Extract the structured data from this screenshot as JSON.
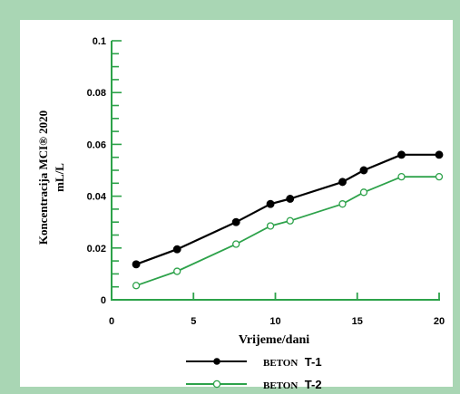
{
  "colors": {
    "border": "#a9d6b4",
    "panel": "#ffffff",
    "axis": "#2da24a",
    "series1": "#000000",
    "series2": "#2da24a"
  },
  "chart_data": {
    "type": "line",
    "title": "",
    "xlabel": "Vrijeme/dani",
    "ylabel": "Koncentracija MCI® 2020",
    "ylabel_unit": "mL/L",
    "xlim": [
      0,
      20
    ],
    "ylim": [
      0,
      0.1
    ],
    "x_ticks": [
      0,
      5,
      10,
      15,
      20
    ],
    "y_ticks": [
      0,
      0.02,
      0.04,
      0.06,
      0.08,
      0.1
    ],
    "y_tick_labels": [
      "0",
      "0.02",
      "0.04",
      "0.06",
      "0.08",
      "0.1"
    ],
    "grid": false,
    "legend_position": "bottom-center",
    "series": [
      {
        "name": "BETON T-1",
        "marker": "filled-circle",
        "points": [
          [
            1.5,
            0.0137
          ],
          [
            4,
            0.0195
          ],
          [
            7.6,
            0.03
          ],
          [
            9.7,
            0.037
          ],
          [
            10.9,
            0.039
          ],
          [
            14.1,
            0.0455
          ],
          [
            15.4,
            0.05
          ],
          [
            17.7,
            0.056
          ],
          [
            20,
            0.056
          ]
        ]
      },
      {
        "name": "BETON T-2",
        "marker": "open-circle",
        "points": [
          [
            1.5,
            0.0055
          ],
          [
            4,
            0.011
          ],
          [
            7.6,
            0.0215
          ],
          [
            9.7,
            0.0285
          ],
          [
            10.9,
            0.0305
          ],
          [
            14.1,
            0.037
          ],
          [
            15.4,
            0.0415
          ],
          [
            17.7,
            0.0475
          ],
          [
            20,
            0.0475
          ]
        ]
      }
    ],
    "legend": [
      {
        "prefix": "BETON",
        "suffix": "T-1"
      },
      {
        "prefix": "BETON",
        "suffix": "T-2"
      }
    ]
  }
}
